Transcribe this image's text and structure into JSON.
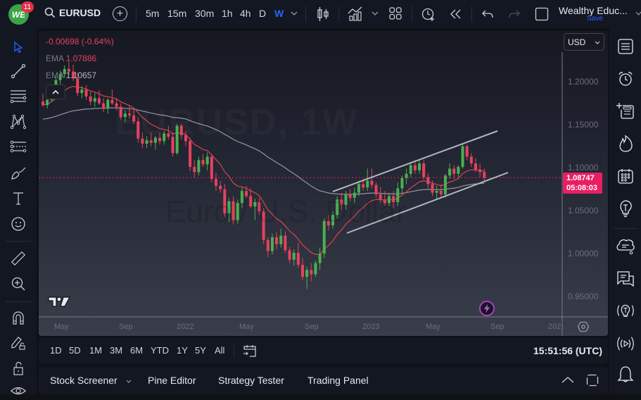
{
  "topbar": {
    "notification_count": "11",
    "logo_text": "WE",
    "symbol": "EURUSD",
    "timeframes": [
      "5m",
      "15m",
      "30m",
      "1h",
      "4h",
      "D",
      "W"
    ],
    "active_timeframe": "W",
    "account_name": "Wealthy Educ...",
    "save_label": "Save"
  },
  "chart": {
    "change": "-0.00698 (-0.64%)",
    "ema1_label": "EMA",
    "ema1_value": "1.07886",
    "ema2_label": "EMA",
    "ema2_value": "1.10657",
    "currency": "USD",
    "watermark_symbol": "EURUSD, 1W",
    "watermark_name": "Euro / U.S. Dollar",
    "price_axis": [
      "1.20000",
      "1.15000",
      "1.10000",
      "1.05000",
      "1.00000",
      "0.95000"
    ],
    "current_price": "1.08747",
    "countdown": "05:08:03",
    "time_axis": [
      "May",
      "Sep",
      "2022",
      "May",
      "Sep",
      "2023",
      "May",
      "Sep",
      "202"
    ],
    "colors": {
      "up": "#4caf50",
      "down": "#e5425f",
      "ema50": "#d9434f",
      "ema200": "#9598a1",
      "channel": "#b2b5be",
      "price_label": "#e91e63"
    }
  },
  "range_bar": {
    "ranges": [
      "1D",
      "5D",
      "1M",
      "3M",
      "6M",
      "YTD",
      "1Y",
      "5Y",
      "All"
    ],
    "clock": "15:51:56 (UTC)"
  },
  "bottom_bar": {
    "tabs": [
      "Stock Screener",
      "Pine Editor",
      "Strategy Tester",
      "Trading Panel"
    ]
  },
  "candles": [
    [
      1.176,
      1.185,
      1.17,
      1.172
    ],
    [
      1.172,
      1.18,
      1.168,
      1.178
    ],
    [
      1.178,
      1.195,
      1.176,
      1.192
    ],
    [
      1.192,
      1.205,
      1.188,
      1.201
    ],
    [
      1.201,
      1.212,
      1.196,
      1.208
    ],
    [
      1.208,
      1.218,
      1.204,
      1.214
    ],
    [
      1.214,
      1.222,
      1.207,
      1.211
    ],
    [
      1.211,
      1.219,
      1.2,
      1.203
    ],
    [
      1.203,
      1.21,
      1.182,
      1.186
    ],
    [
      1.186,
      1.194,
      1.18,
      1.19
    ],
    [
      1.19,
      1.195,
      1.178,
      1.182
    ],
    [
      1.182,
      1.188,
      1.172,
      1.176
    ],
    [
      1.176,
      1.186,
      1.17,
      1.18
    ],
    [
      1.18,
      1.189,
      1.172,
      1.174
    ],
    [
      1.174,
      1.18,
      1.164,
      1.168
    ],
    [
      1.168,
      1.18,
      1.162,
      1.178
    ],
    [
      1.178,
      1.19,
      1.172,
      1.174
    ],
    [
      1.174,
      1.18,
      1.166,
      1.17
    ],
    [
      1.17,
      1.174,
      1.155,
      1.158
    ],
    [
      1.158,
      1.166,
      1.152,
      1.162
    ],
    [
      1.162,
      1.172,
      1.156,
      1.16
    ],
    [
      1.16,
      1.168,
      1.15,
      1.153
    ],
    [
      1.153,
      1.158,
      1.128,
      1.133
    ],
    [
      1.133,
      1.14,
      1.122,
      1.127
    ],
    [
      1.127,
      1.136,
      1.122,
      1.131
    ],
    [
      1.131,
      1.14,
      1.124,
      1.128
    ],
    [
      1.128,
      1.136,
      1.12,
      1.134
    ],
    [
      1.134,
      1.14,
      1.126,
      1.13
    ],
    [
      1.13,
      1.142,
      1.126,
      1.139
    ],
    [
      1.139,
      1.148,
      1.132,
      1.135
    ],
    [
      1.135,
      1.14,
      1.112,
      1.116
    ],
    [
      1.116,
      1.15,
      1.114,
      1.148
    ],
    [
      1.148,
      1.15,
      1.132,
      1.137
    ],
    [
      1.137,
      1.142,
      1.124,
      1.13
    ],
    [
      1.13,
      1.134,
      1.095,
      1.1
    ],
    [
      1.1,
      1.108,
      1.088,
      1.094
    ],
    [
      1.094,
      1.112,
      1.09,
      1.108
    ],
    [
      1.108,
      1.115,
      1.1,
      1.103
    ],
    [
      1.103,
      1.117,
      1.096,
      1.112
    ],
    [
      1.112,
      1.115,
      1.082,
      1.086
    ],
    [
      1.086,
      1.093,
      1.072,
      1.078
    ],
    [
      1.078,
      1.084,
      1.07,
      1.074
    ],
    [
      1.074,
      1.08,
      1.042,
      1.046
    ],
    [
      1.046,
      1.064,
      1.036,
      1.06
    ],
    [
      1.06,
      1.066,
      1.033,
      1.038
    ],
    [
      1.038,
      1.062,
      1.034,
      1.058
    ],
    [
      1.058,
      1.076,
      1.052,
      1.072
    ],
    [
      1.072,
      1.078,
      1.064,
      1.066
    ],
    [
      1.066,
      1.075,
      1.052,
      1.054
    ],
    [
      1.054,
      1.063,
      1.038,
      1.059
    ],
    [
      1.059,
      1.064,
      1.044,
      1.048
    ],
    [
      1.048,
      1.052,
      1.01,
      1.015
    ],
    [
      1.015,
      1.018,
      0.995,
      1.002
    ],
    [
      1.002,
      1.022,
      0.998,
      1.018
    ],
    [
      1.018,
      1.024,
      1.004,
      1.01
    ],
    [
      1.01,
      1.028,
      1.006,
      1.02
    ],
    [
      1.02,
      1.025,
      1.0,
      1.003
    ],
    [
      1.003,
      1.007,
      0.988,
      0.992
    ],
    [
      0.992,
      1.004,
      0.985,
      1.0
    ],
    [
      1.0,
      1.012,
      0.982,
      0.986
    ],
    [
      0.986,
      0.994,
      0.968,
      0.972
    ],
    [
      0.972,
      0.984,
      0.958,
      0.98
    ],
    [
      0.98,
      0.988,
      0.967,
      0.975
    ],
    [
      0.975,
      0.991,
      0.972,
      0.988
    ],
    [
      0.988,
      1.006,
      0.98,
      0.999
    ],
    [
      0.999,
      1.04,
      0.994,
      1.037
    ],
    [
      1.037,
      1.044,
      1.026,
      1.032
    ],
    [
      1.032,
      1.048,
      1.028,
      1.044
    ],
    [
      1.044,
      1.066,
      1.04,
      1.062
    ],
    [
      1.062,
      1.07,
      1.05,
      1.056
    ],
    [
      1.056,
      1.072,
      1.05,
      1.068
    ],
    [
      1.068,
      1.074,
      1.06,
      1.064
    ],
    [
      1.064,
      1.076,
      1.058,
      1.07
    ],
    [
      1.07,
      1.084,
      1.066,
      1.08
    ],
    [
      1.08,
      1.086,
      1.072,
      1.076
    ],
    [
      1.076,
      1.098,
      1.072,
      1.084
    ],
    [
      1.084,
      1.098,
      1.075,
      1.079
    ],
    [
      1.079,
      1.082,
      1.064,
      1.068
    ],
    [
      1.068,
      1.077,
      1.058,
      1.062
    ],
    [
      1.062,
      1.072,
      1.055,
      1.058
    ],
    [
      1.058,
      1.07,
      1.054,
      1.066
    ],
    [
      1.066,
      1.072,
      1.052,
      1.059
    ],
    [
      1.059,
      1.082,
      1.054,
      1.075
    ],
    [
      1.075,
      1.09,
      1.07,
      1.087
    ],
    [
      1.087,
      1.098,
      1.08,
      1.092
    ],
    [
      1.092,
      1.106,
      1.088,
      1.102
    ],
    [
      1.102,
      1.108,
      1.092,
      1.096
    ],
    [
      1.096,
      1.109,
      1.092,
      1.104
    ],
    [
      1.104,
      1.108,
      1.085,
      1.088
    ],
    [
      1.088,
      1.092,
      1.075,
      1.08
    ],
    [
      1.08,
      1.084,
      1.066,
      1.07
    ],
    [
      1.07,
      1.078,
      1.062,
      1.072
    ],
    [
      1.072,
      1.08,
      1.064,
      1.068
    ],
    [
      1.068,
      1.092,
      1.064,
      1.09
    ],
    [
      1.09,
      1.104,
      1.086,
      1.098
    ],
    [
      1.098,
      1.102,
      1.086,
      1.092
    ],
    [
      1.092,
      1.102,
      1.088,
      1.1
    ],
    [
      1.1,
      1.127,
      1.098,
      1.124
    ],
    [
      1.124,
      1.126,
      1.108,
      1.112
    ],
    [
      1.112,
      1.116,
      1.1,
      1.104
    ],
    [
      1.104,
      1.11,
      1.094,
      1.097
    ],
    [
      1.097,
      1.104,
      1.088,
      1.094
    ],
    [
      1.094,
      1.098,
      1.084,
      1.0875
    ]
  ]
}
